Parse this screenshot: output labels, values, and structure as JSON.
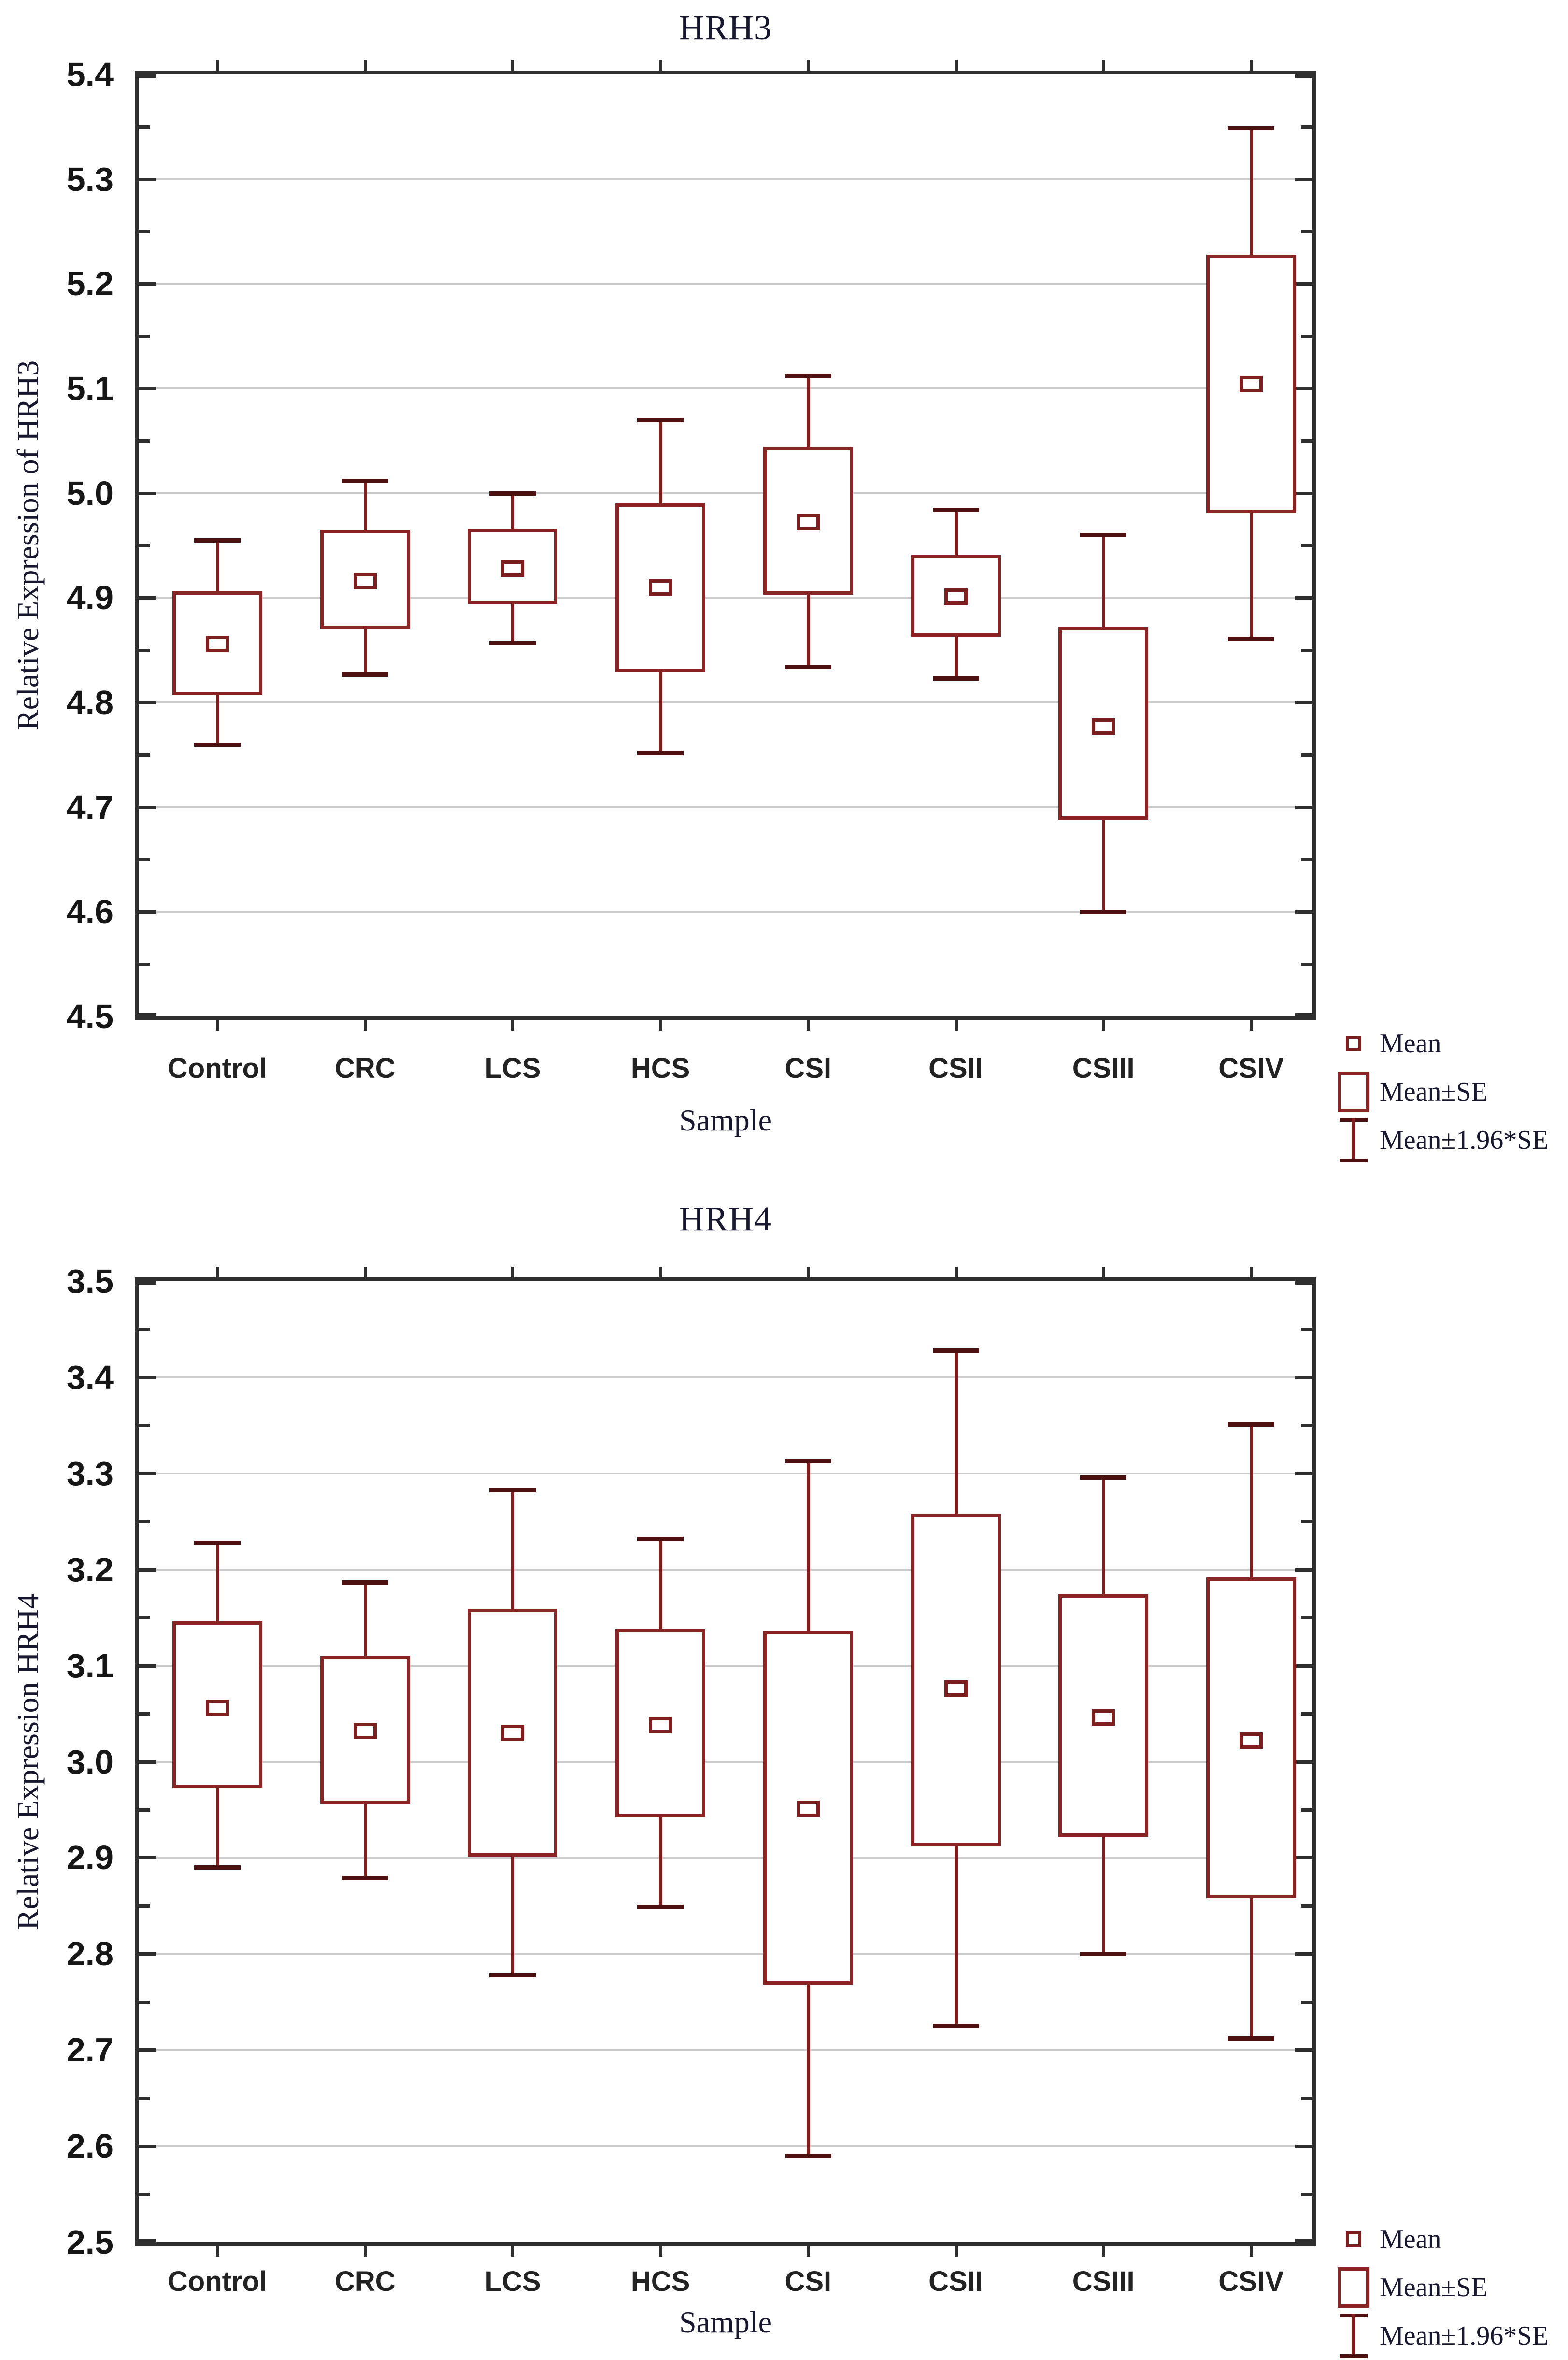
{
  "colors": {
    "box_stroke": "#8a2525",
    "whisker_line": "#7e1f1f",
    "whisker_cap": "#4d1111",
    "mean_marker": "#7e1f1f",
    "gridline": "#cbcbcb",
    "axis_spine": "#2f2f2f",
    "serif_text": "#17172f",
    "tick_text": "#161616"
  },
  "chart_data": [
    {
      "type": "box",
      "title": "HRH3",
      "ylabel": "Relative Expression of HRH3",
      "xlabel": "Sample",
      "ylim": [
        4.5,
        5.4
      ],
      "ytick_step": 0.1,
      "minor_tick_step": 0.05,
      "grid": true,
      "legend_position": "bottom-right-outside",
      "yticks": [
        "5.4",
        "5.3",
        "5.2",
        "5.1",
        "5.0",
        "4.9",
        "4.8",
        "4.7",
        "4.6",
        "4.5"
      ],
      "categories": [
        "Control",
        "CRC",
        "LCS",
        "HCS",
        "CSI",
        "CSII",
        "CSIII",
        "CSIV"
      ],
      "legend": [
        "Mean",
        "Mean±SE",
        "Mean±1.96*SE"
      ],
      "series": [
        {
          "sample": "Control",
          "mean": 4.856,
          "se_low": 4.807,
          "se_high": 4.906,
          "whisker_low": 4.76,
          "whisker_high": 4.955
        },
        {
          "sample": "CRC",
          "mean": 4.916,
          "se_low": 4.87,
          "se_high": 4.965,
          "whisker_low": 4.827,
          "whisker_high": 5.012
        },
        {
          "sample": "LCS",
          "mean": 4.928,
          "se_low": 4.894,
          "se_high": 4.966,
          "whisker_low": 4.857,
          "whisker_high": 5.0
        },
        {
          "sample": "HCS",
          "mean": 4.91,
          "se_low": 4.829,
          "se_high": 4.99,
          "whisker_low": 4.752,
          "whisker_high": 5.07
        },
        {
          "sample": "CSI",
          "mean": 4.972,
          "se_low": 4.903,
          "se_high": 5.044,
          "whisker_low": 4.834,
          "whisker_high": 5.112
        },
        {
          "sample": "CSII",
          "mean": 4.901,
          "se_low": 4.863,
          "se_high": 4.941,
          "whisker_low": 4.823,
          "whisker_high": 4.984
        },
        {
          "sample": "CSIII",
          "mean": 4.777,
          "se_low": 4.688,
          "se_high": 4.872,
          "whisker_low": 4.6,
          "whisker_high": 4.96
        },
        {
          "sample": "CSIV",
          "mean": 5.104,
          "se_low": 4.981,
          "se_high": 5.228,
          "whisker_low": 4.861,
          "whisker_high": 5.349
        }
      ]
    },
    {
      "type": "box",
      "title": "HRH4",
      "ylabel": "Relative Expression HRH4",
      "xlabel": "Sample",
      "ylim": [
        2.5,
        3.5
      ],
      "ytick_step": 0.1,
      "minor_tick_step": 0.05,
      "grid": true,
      "legend_position": "bottom-right-outside",
      "yticks": [
        "3.5",
        "3.4",
        "3.3",
        "3.2",
        "3.1",
        "3.0",
        "2.9",
        "2.8",
        "2.7",
        "2.6",
        "2.5"
      ],
      "categories": [
        "Control",
        "CRC",
        "LCS",
        "HCS",
        "CSI",
        "CSII",
        "CSIII",
        "CSIV"
      ],
      "legend": [
        "Mean",
        "Mean±SE",
        "Mean±1.96*SE"
      ],
      "series": [
        {
          "sample": "Control",
          "mean": 3.056,
          "se_low": 2.972,
          "se_high": 3.146,
          "whisker_low": 2.89,
          "whisker_high": 3.228
        },
        {
          "sample": "CRC",
          "mean": 3.032,
          "se_low": 2.956,
          "se_high": 3.11,
          "whisker_low": 2.879,
          "whisker_high": 3.187
        },
        {
          "sample": "LCS",
          "mean": 3.03,
          "se_low": 2.901,
          "se_high": 3.159,
          "whisker_low": 2.778,
          "whisker_high": 3.283
        },
        {
          "sample": "HCS",
          "mean": 3.038,
          "se_low": 2.942,
          "se_high": 3.138,
          "whisker_low": 2.849,
          "whisker_high": 3.232
        },
        {
          "sample": "CSI",
          "mean": 2.951,
          "se_low": 2.768,
          "se_high": 3.136,
          "whisker_low": 2.59,
          "whisker_high": 3.313
        },
        {
          "sample": "CSII",
          "mean": 3.076,
          "se_low": 2.912,
          "se_high": 3.258,
          "whisker_low": 2.725,
          "whisker_high": 3.428
        },
        {
          "sample": "CSIII",
          "mean": 3.046,
          "se_low": 2.922,
          "se_high": 3.174,
          "whisker_low": 2.8,
          "whisker_high": 3.296
        },
        {
          "sample": "CSIV",
          "mean": 3.022,
          "se_low": 2.858,
          "se_high": 3.192,
          "whisker_low": 2.712,
          "whisker_high": 3.351
        }
      ]
    }
  ]
}
